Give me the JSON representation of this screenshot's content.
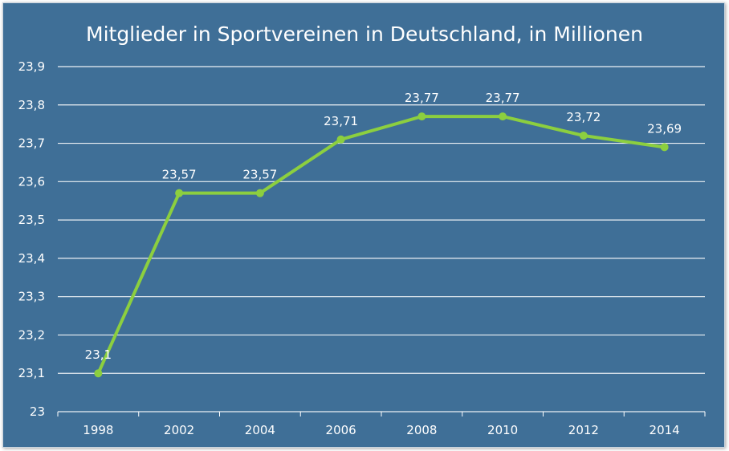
{
  "chart_data": {
    "type": "line",
    "title": "Mitglieder in Sportvereinen in Deutschland, in Millionen",
    "xlabel": "",
    "ylabel": "",
    "categories": [
      "1998",
      "2002",
      "2004",
      "2006",
      "2008",
      "2010",
      "2012",
      "2014"
    ],
    "series": [
      {
        "values": [
          23.1,
          23.57,
          23.57,
          23.71,
          23.77,
          23.77,
          23.72,
          23.69
        ],
        "labels": [
          "23,1",
          "23,57",
          "23,57",
          "23,71",
          "23,77",
          "23,77",
          "23,72",
          "23,69"
        ]
      }
    ],
    "ylim": [
      23.0,
      23.9
    ],
    "yticks": [
      "23",
      "23,1",
      "23,2",
      "23,3",
      "23,4",
      "23,5",
      "23,6",
      "23,7",
      "23,8",
      "23,9"
    ],
    "grid": true,
    "colors": {
      "background": "#3f6f97",
      "line": "#8ccf3f",
      "grid": "#ffffff",
      "text": "#ffffff"
    }
  }
}
